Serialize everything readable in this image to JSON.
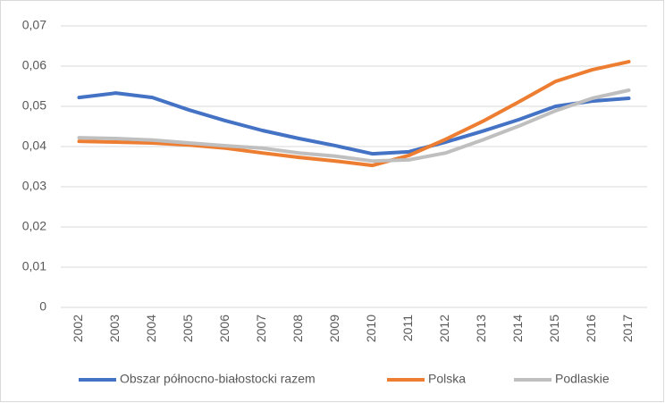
{
  "chart_data": {
    "type": "line",
    "categories": [
      "2002",
      "2003",
      "2004",
      "2005",
      "2006",
      "2007",
      "2008",
      "2009",
      "2010",
      "2011",
      "2012",
      "2013",
      "2014",
      "2015",
      "2016",
      "2017"
    ],
    "series": [
      {
        "name": "Obszar północno-białostocki razem",
        "color": "#4472c4",
        "values": [
          0.0522,
          0.0533,
          0.0522,
          0.0491,
          0.0464,
          0.044,
          0.042,
          0.0402,
          0.0382,
          0.0387,
          0.0411,
          0.0438,
          0.0467,
          0.05,
          0.0513,
          0.052
        ]
      },
      {
        "name": "Polska",
        "color": "#ed7d31",
        "values": [
          0.0413,
          0.0411,
          0.0409,
          0.0404,
          0.0396,
          0.0384,
          0.0373,
          0.0364,
          0.0353,
          0.0378,
          0.0418,
          0.0462,
          0.0511,
          0.0562,
          0.0591,
          0.0611
        ]
      },
      {
        "name": "Podlaskie",
        "color": "#bfbfbf",
        "values": [
          0.0422,
          0.042,
          0.0416,
          0.0409,
          0.0402,
          0.0396,
          0.0384,
          0.0376,
          0.0364,
          0.0367,
          0.0384,
          0.0416,
          0.0451,
          0.0489,
          0.052,
          0.054
        ]
      }
    ],
    "ylim": [
      0,
      0.07
    ],
    "yticks": [
      0,
      {
        "value": 0.01,
        "label": "0,01"
      },
      {
        "value": 0.02,
        "label": "0,02"
      },
      {
        "value": 0.03,
        "label": "0,03"
      },
      {
        "value": 0.04,
        "label": "0,04"
      },
      {
        "value": 0.05,
        "label": "0,05"
      },
      {
        "value": 0.06,
        "label": "0,06"
      },
      {
        "value": 0.07,
        "label": "0,07"
      }
    ],
    "grid": true,
    "legend": "bottom"
  }
}
